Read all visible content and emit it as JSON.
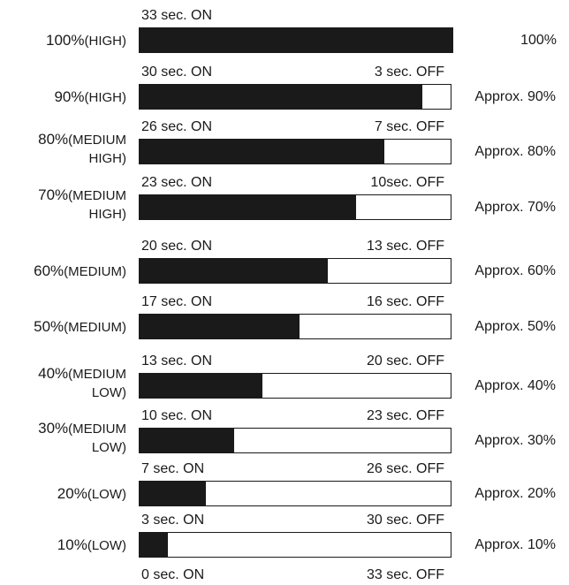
{
  "chart_data": {
    "type": "bar",
    "orientation": "horizontal",
    "stacked": true,
    "cycle_seconds": 33,
    "rows": [
      {
        "level": "100%",
        "level_word": "(HIGH)",
        "on": 33,
        "off": 0,
        "on_label": "33 sec. ON",
        "off_label": "",
        "power_label": "100%"
      },
      {
        "level": "90%",
        "level_word": "(HIGH)",
        "on": 30,
        "off": 3,
        "on_label": "30 sec. ON",
        "off_label": "3 sec. OFF",
        "power_label": "Approx. 90%"
      },
      {
        "level": "80%",
        "level_word": "(MEDIUM HIGH)",
        "on": 26,
        "off": 7,
        "on_label": "26 sec. ON",
        "off_label": "7 sec. OFF",
        "power_label": "Approx. 80%"
      },
      {
        "level": "70%",
        "level_word": "(MEDIUM HIGH)",
        "on": 23,
        "off": 10,
        "on_label": "23 sec. ON",
        "off_label": "10sec. OFF",
        "power_label": "Approx. 70%"
      },
      {
        "level": "60%",
        "level_word": "(MEDIUM)",
        "on": 20,
        "off": 13,
        "on_label": "20 sec. ON",
        "off_label": "13 sec. OFF",
        "power_label": "Approx. 60%"
      },
      {
        "level": "50%",
        "level_word": "(MEDIUM)",
        "on": 17,
        "off": 16,
        "on_label": "17 sec. ON",
        "off_label": "16 sec. OFF",
        "power_label": "Approx. 50%"
      },
      {
        "level": "40%",
        "level_word": "(MEDIUM LOW)",
        "on": 13,
        "off": 20,
        "on_label": "13 sec. ON",
        "off_label": "20 sec. OFF",
        "power_label": "Approx. 40%"
      },
      {
        "level": "30%",
        "level_word": "(MEDIUM LOW)",
        "on": 10,
        "off": 23,
        "on_label": "10 sec. ON",
        "off_label": "23 sec. OFF",
        "power_label": "Approx. 30%"
      },
      {
        "level": "20%",
        "level_word": "(LOW)",
        "on": 7,
        "off": 26,
        "on_label": "7 sec. ON",
        "off_label": "26 sec. OFF",
        "power_label": "Approx. 20%"
      },
      {
        "level": "10%",
        "level_word": "(LOW)",
        "on": 3,
        "off": 30,
        "on_label": "3 sec. ON",
        "off_label": "30 sec. OFF",
        "power_label": "Approx. 10%"
      }
    ],
    "bottom_labels": {
      "on_label": "0 sec. ON",
      "off_label": "33 sec. OFF"
    },
    "colors": {
      "on": "#1a1a1a",
      "off": "#ffffff"
    }
  }
}
